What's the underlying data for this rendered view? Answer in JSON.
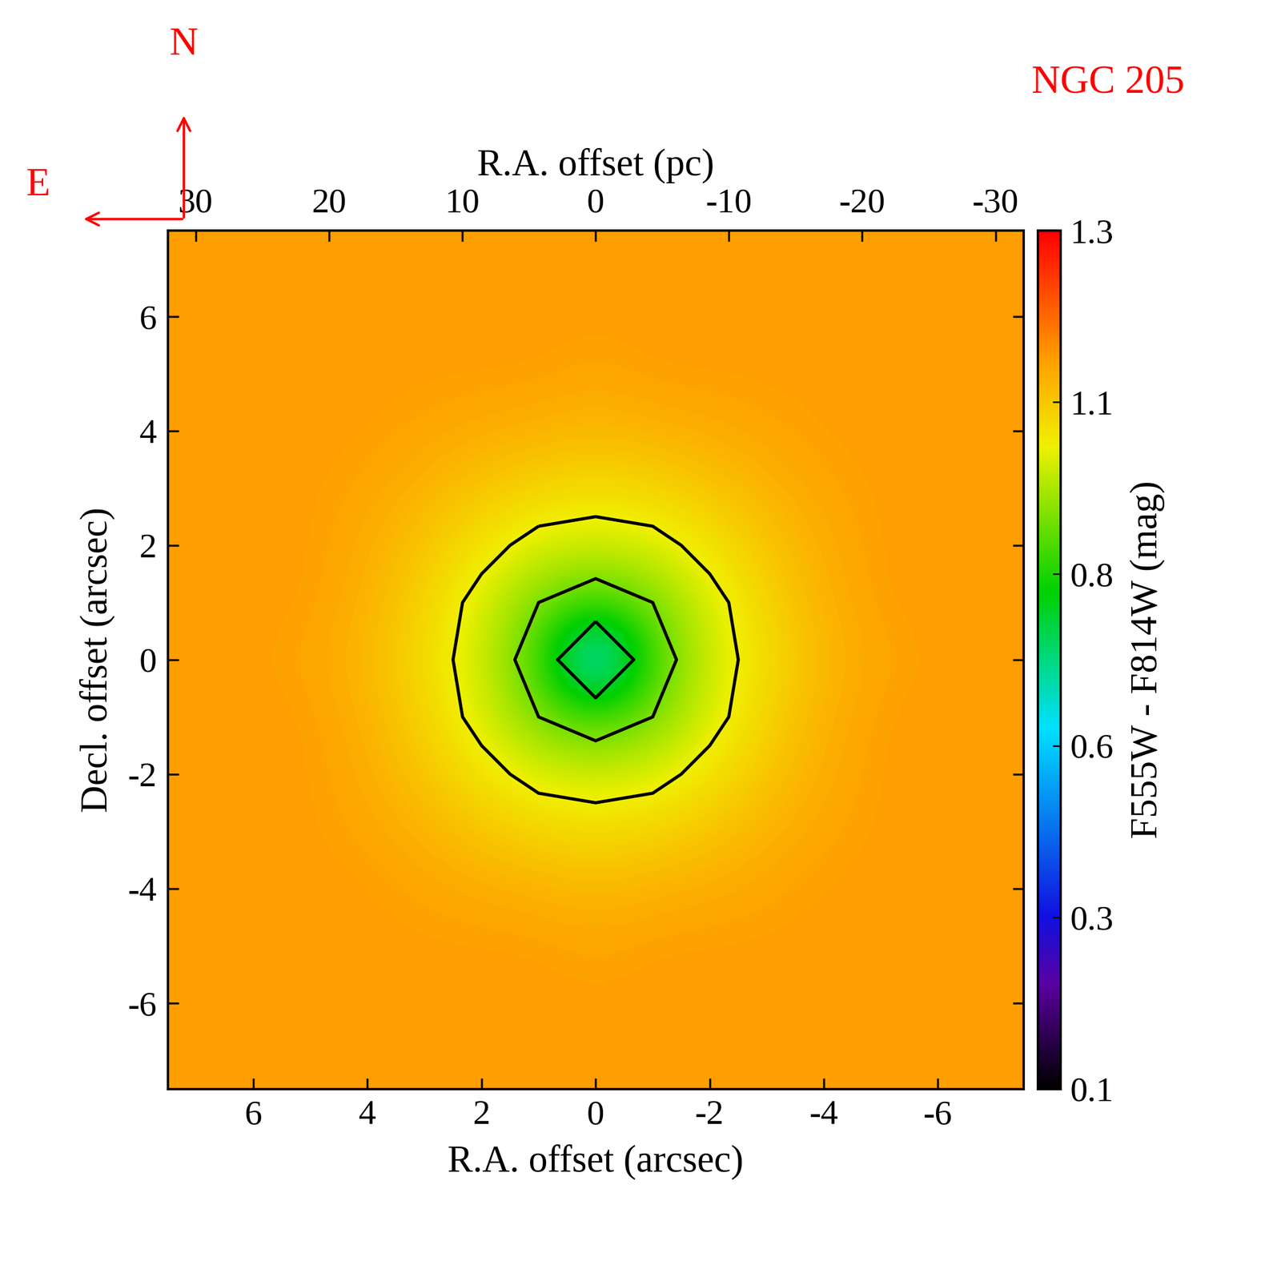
{
  "chart_data": {
    "type": "heatmap",
    "title": "NGC 205",
    "xlabel": "R.A. offset (arcsec)",
    "ylabel": "Decl. offset (arcsec)",
    "x2label": "R.A. offset (pc)",
    "colorbar_label": "F555W - F814W (mag)",
    "annotations": [
      "N",
      "E"
    ],
    "x": [
      7,
      6,
      5,
      4,
      3,
      2,
      1,
      0,
      -1,
      -2,
      -3,
      -4,
      -5,
      -6,
      -7
    ],
    "y": [
      7,
      6,
      5,
      4,
      3,
      2,
      1,
      0,
      -1,
      -2,
      -3,
      -4,
      -5,
      -6,
      -7
    ],
    "cells": [
      [
        1.12,
        1.12,
        1.12,
        1.12,
        1.12,
        1.12,
        1.12,
        1.12,
        1.12,
        1.12,
        1.12,
        1.12,
        1.12,
        1.12,
        1.12
      ],
      [
        1.12,
        1.12,
        1.12,
        1.12,
        1.12,
        1.12,
        1.12,
        1.12,
        1.12,
        1.12,
        1.12,
        1.12,
        1.12,
        1.12,
        1.12
      ],
      [
        1.12,
        1.12,
        1.12,
        1.12,
        1.12,
        1.12,
        1.12,
        1.11,
        1.12,
        1.12,
        1.12,
        1.12,
        1.12,
        1.12,
        1.12
      ],
      [
        1.12,
        1.12,
        1.12,
        1.12,
        1.11,
        1.1,
        1.09,
        1.08,
        1.09,
        1.1,
        1.11,
        1.12,
        1.12,
        1.12,
        1.12
      ],
      [
        1.12,
        1.12,
        1.12,
        1.11,
        1.09,
        1.06,
        1.04,
        1.03,
        1.04,
        1.06,
        1.09,
        1.11,
        1.12,
        1.12,
        1.12
      ],
      [
        1.12,
        1.12,
        1.12,
        1.1,
        1.06,
        1.02,
        0.98,
        0.97,
        0.98,
        1.02,
        1.06,
        1.1,
        1.12,
        1.12,
        1.12
      ],
      [
        1.12,
        1.12,
        1.12,
        1.09,
        1.04,
        0.98,
        0.9,
        0.85,
        0.9,
        0.98,
        1.04,
        1.09,
        1.12,
        1.12,
        1.12
      ],
      [
        1.12,
        1.12,
        1.11,
        1.08,
        1.03,
        0.97,
        0.85,
        0.55,
        0.85,
        0.97,
        1.03,
        1.08,
        1.11,
        1.12,
        1.12
      ],
      [
        1.12,
        1.12,
        1.12,
        1.09,
        1.04,
        0.98,
        0.9,
        0.85,
        0.9,
        0.98,
        1.04,
        1.09,
        1.12,
        1.12,
        1.12
      ],
      [
        1.12,
        1.12,
        1.12,
        1.1,
        1.06,
        1.02,
        0.98,
        0.97,
        0.98,
        1.02,
        1.06,
        1.1,
        1.12,
        1.12,
        1.12
      ],
      [
        1.12,
        1.12,
        1.12,
        1.11,
        1.09,
        1.06,
        1.04,
        1.03,
        1.04,
        1.06,
        1.09,
        1.11,
        1.12,
        1.12,
        1.12
      ],
      [
        1.12,
        1.12,
        1.12,
        1.12,
        1.11,
        1.1,
        1.09,
        1.08,
        1.09,
        1.1,
        1.11,
        1.12,
        1.12,
        1.12,
        1.12
      ],
      [
        1.12,
        1.12,
        1.12,
        1.12,
        1.12,
        1.12,
        1.12,
        1.11,
        1.12,
        1.12,
        1.12,
        1.12,
        1.12,
        1.12,
        1.12
      ],
      [
        1.12,
        1.12,
        1.12,
        1.12,
        1.12,
        1.12,
        1.12,
        1.12,
        1.12,
        1.12,
        1.12,
        1.12,
        1.12,
        1.12,
        1.12
      ],
      [
        1.12,
        1.12,
        1.12,
        1.12,
        1.12,
        1.12,
        1.12,
        1.12,
        1.12,
        1.12,
        1.12,
        1.12,
        1.12,
        1.12,
        1.12
      ]
    ],
    "contour_levels": [
      0.75,
      0.9,
      1.0
    ],
    "xlim": [
      7.5,
      -7.5
    ],
    "ylim": [
      -7.5,
      7.5
    ],
    "xticks": [
      6,
      4,
      2,
      0,
      -2,
      -4,
      -6
    ],
    "yticks": [
      -6,
      -4,
      -2,
      0,
      2,
      4,
      6
    ],
    "x2lim": [
      32.1,
      -32.1
    ],
    "x2ticks": [
      30,
      20,
      10,
      0,
      -10,
      -20,
      -30
    ],
    "clim": [
      0.1,
      1.3
    ],
    "colorbar_ticks": [
      1.3,
      {
        "value": 1.06,
        "label": "1.1"
      },
      {
        "value": 0.82,
        "label": "0.8"
      },
      {
        "value": 0.58,
        "label": "0.6"
      },
      {
        "value": 0.34,
        "label": "0.3"
      },
      0.1
    ]
  }
}
